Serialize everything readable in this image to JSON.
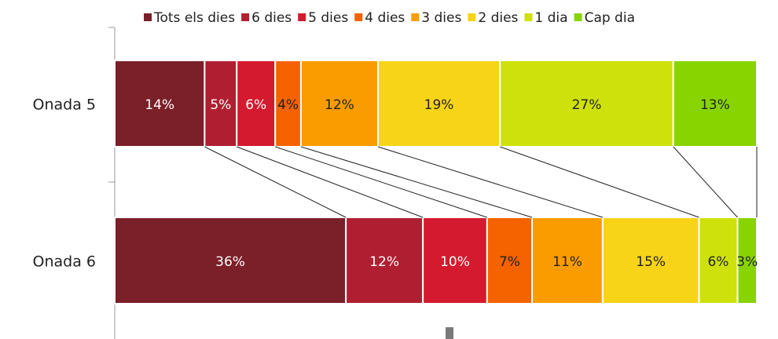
{
  "chart_data": {
    "type": "bar",
    "orientation": "horizontal",
    "stacked": "percent",
    "categories": [
      "Onada 5",
      "Onada 6"
    ],
    "series": [
      {
        "name": "Tots els dies",
        "color": "#7b1f28",
        "label_color": "#ffffff",
        "values": [
          14,
          36
        ],
        "value_labels": [
          "14%",
          "36%"
        ]
      },
      {
        "name": "6 dies",
        "color": "#b01f31",
        "label_color": "#ffffff",
        "values": [
          5,
          12
        ],
        "value_labels": [
          "5%",
          "12%"
        ]
      },
      {
        "name": "5 dies",
        "color": "#d41a2e",
        "label_color": "#ffffff",
        "values": [
          6,
          10
        ],
        "value_labels": [
          "6%",
          "10%"
        ]
      },
      {
        "name": "4 dies",
        "color": "#f56200",
        "label_color": "#222222",
        "values": [
          4,
          7
        ],
        "value_labels": [
          "4%",
          "7%"
        ]
      },
      {
        "name": "3 dies",
        "color": "#fa9c00",
        "label_color": "#222222",
        "values": [
          12,
          11
        ],
        "value_labels": [
          "12%",
          "11%"
        ]
      },
      {
        "name": "2 dies",
        "color": "#f8d418",
        "label_color": "#222222",
        "values": [
          19,
          15
        ],
        "value_labels": [
          "19%",
          "15%"
        ]
      },
      {
        "name": "1 dia",
        "color": "#cfe10a",
        "label_color": "#222222",
        "values": [
          27,
          6
        ],
        "value_labels": [
          "27%",
          "6%"
        ]
      },
      {
        "name": "Cap dia",
        "color": "#88d400",
        "label_color": "#222222",
        "values": [
          13,
          3
        ],
        "value_labels": [
          "13%",
          "3%"
        ]
      }
    ],
    "legend": "top",
    "series_lines": true
  }
}
